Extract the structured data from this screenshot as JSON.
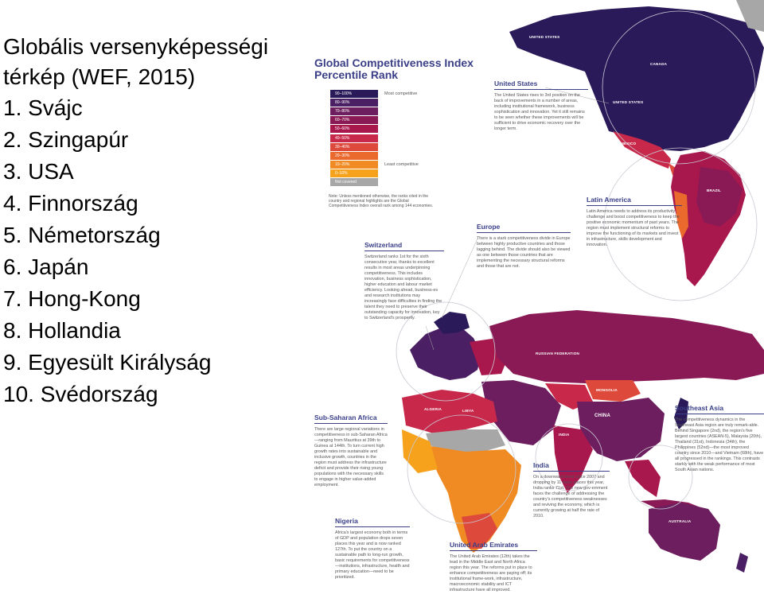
{
  "left": {
    "title": "Globális versenyképességi térkép (WEF, 2015)",
    "ranking": [
      "1.  Svájc",
      "2.  Szingapúr",
      "3.  USA",
      "4.  Finnország",
      "5.  Németország",
      "6.  Japán",
      "7.  Hong-Kong",
      "8.  Hollandia",
      "9.  Egyesült Királyság",
      "10. Svédország"
    ]
  },
  "map": {
    "title": "Global Competitiveness Index Percentile Rank",
    "legend": {
      "bins": [
        {
          "range": "90–100%",
          "color": "#2b1a5a"
        },
        {
          "range": "80–90%",
          "color": "#4a1f63"
        },
        {
          "range": "70–80%",
          "color": "#6d1e5e"
        },
        {
          "range": "60–70%",
          "color": "#8a1a55"
        },
        {
          "range": "50–60%",
          "color": "#a8184d"
        },
        {
          "range": "40–50%",
          "color": "#c8294a"
        },
        {
          "range": "30–40%",
          "color": "#dd4a3c"
        },
        {
          "range": "20–30%",
          "color": "#ea6a2e"
        },
        {
          "range": "10–20%",
          "color": "#f08a22"
        },
        {
          "range": "0–10%",
          "color": "#f6a21c"
        },
        {
          "range": "Not covered",
          "color": "#a7a7a7"
        }
      ],
      "most_label": "Most competitive",
      "least_label": "Least competitive",
      "note": "Note: Unless mentioned otherwise, the ranks cited in the country and regional highlights are the Global Competitiveness Index overall rank among 144 economies."
    },
    "callouts": {
      "united_states": {
        "title": "United States",
        "text": "The United States rises to 3rd position on the back of improvements in a number of areas, including institutional framework, business sophistication and innovation. Yet it still remains to be seen whether these improvements will be sufficient to drive economic recovery over the longer term."
      },
      "latin_america": {
        "title": "Latin America",
        "text": "Latin America needs to address its productivity challenge and boost competitiveness to keep the positive economic momentum of past years. The region must implement structural reforms to improve the functioning of its markets and invest in infrastructure, skills development and innovation."
      },
      "europe": {
        "title": "Europe",
        "text": "There is a stark competitiveness divide in Europe between highly productive countries and those lagging behind. The divide should also be viewed as one between those countries that are implementing the necessary structural reforms and those that are not."
      },
      "switzerland": {
        "title": "Switzerland",
        "text": "Switzerland ranks 1st for the sixth consecutive year, thanks to excellent results in most areas underpinning competitiveness. This includes innovation, business sophistication, higher education and labour market efficiency. Looking ahead, business-es and research institutions may increasingly face difficulties in finding the talent they need to preserve their outstanding capacity for innovation, key to Switzerland's prosperity."
      },
      "sub_saharan_africa": {
        "title": "Sub-Saharan Africa",
        "text": "There are large regional variations in competitiveness in sub-Saharan Africa—ranging from Mauritius at 39th to Guinea at 144th. To turn current high growth rates into sustainable and inclusive growth, countries in the region must address the infrastructure deficit and provide their rising young populations with the necessary skills to engage in higher value-added employment."
      },
      "southeast_asia": {
        "title": "Southeast Asia",
        "text": "The competitiveness dynamics in the Southeast Asia region are truly remark-able. Behind Singapore (2nd), the region's five largest countries (ASEAN-5), Malaysia (20th), Thailand (31st), Indonesia (34th), the Philippines (52nd)—the most improved country since 2010—and Vietnam (68th), have all progressed in the rankings. This contrasts starkly with the weak performance of most South Asian nations."
      },
      "india": {
        "title": "India",
        "text": "On a downward trend since 2007 and dropping by 11 more places this year, India ranks 71st. The new gov-ernment faces the challenge of addressing the country's competitiveness weaknesses and reviving the economy, which is currently growing at half the rate of 2010."
      },
      "nigeria": {
        "title": "Nigeria",
        "text": "Africa's largest economy both in terms of GDP and population drops seven places this year and is now ranked 127th. To put the country on a sustainable path to long-run growth, basic requirements for competitiveness—institutions, infrastructure, health and primary education—need to be prioritized."
      },
      "uae": {
        "title": "United Arab Emirates",
        "text": "The United Arab Emirates (12th) takes the lead in the Middle East and North Africa region this year. The reforms put in place to enhance competitiveness are paying off; its institutional frame-work, infrastructure, macroeconomic stability and ICT infrastructure have all improved."
      }
    },
    "country_labels": {
      "us_top": "UNITED STATES",
      "canada": "CANADA",
      "us_main": "UNITED STATES",
      "mexico": "MEXICO",
      "brazil": "BRAZIL",
      "russia": "RUSSIAN FEDERATION",
      "mongolia": "MONGOLIA",
      "china": "CHINA",
      "india": "INDIA",
      "algeria": "ALGERIA",
      "libya": "LIBYA",
      "australia": "AUSTRALIA"
    }
  }
}
